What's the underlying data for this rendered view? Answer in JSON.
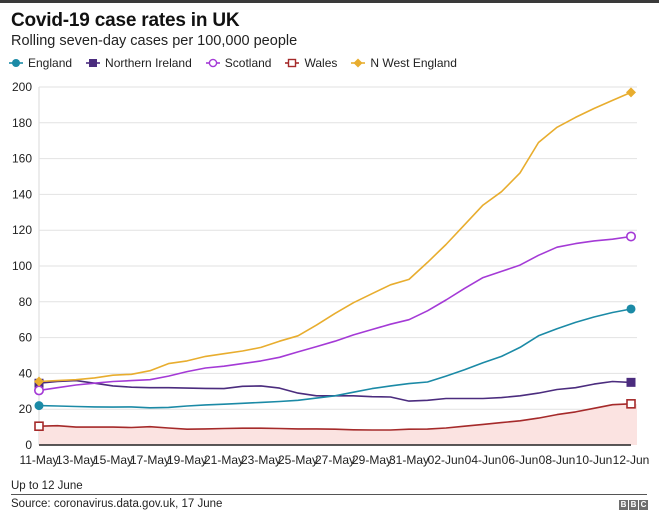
{
  "header": {
    "title": "Covid-19 case rates in UK",
    "subtitle": "Rolling seven-day cases per 100,000 people"
  },
  "footer": {
    "note": "Up to 12 June",
    "source": "Source: coronavirus.data.gov.uk, 17 June",
    "logo_letters": [
      "B",
      "B",
      "C"
    ]
  },
  "chart_data": {
    "type": "line",
    "title": "Covid-19 case rates in UK",
    "subtitle": "Rolling seven-day cases per 100,000 people",
    "xlabel": "",
    "ylabel": "",
    "ylim": [
      0,
      200
    ],
    "yticks": [
      0,
      20,
      40,
      60,
      80,
      100,
      120,
      140,
      160,
      180,
      200
    ],
    "grid": true,
    "legend_position": "top-left",
    "x": [
      "11-May",
      "12-May",
      "13-May",
      "14-May",
      "15-May",
      "16-May",
      "17-May",
      "18-May",
      "19-May",
      "20-May",
      "21-May",
      "22-May",
      "23-May",
      "24-May",
      "25-May",
      "26-May",
      "27-May",
      "28-May",
      "29-May",
      "30-May",
      "31-May",
      "01-Jun",
      "02-Jun",
      "03-Jun",
      "04-Jun",
      "05-Jun",
      "06-Jun",
      "07-Jun",
      "08-Jun",
      "09-Jun",
      "10-Jun",
      "11-Jun",
      "12-Jun"
    ],
    "xtick_labels": [
      "11-May",
      "13-May",
      "15-May",
      "17-May",
      "19-May",
      "21-May",
      "23-May",
      "25-May",
      "27-May",
      "29-May",
      "31-May",
      "02-Jun",
      "04-Jun",
      "06-Jun",
      "08-Jun",
      "10-Jun",
      "12-Jun"
    ],
    "series": [
      {
        "name": "England",
        "color": "#1b8aa6",
        "marker": "filled-circle",
        "values": [
          22,
          21.8,
          21.5,
          21.3,
          21.2,
          21.3,
          20.8,
          21.0,
          21.8,
          22.4,
          22.8,
          23.3,
          23.8,
          24.3,
          25.0,
          26.2,
          27.5,
          29.5,
          31.5,
          33.0,
          34.3,
          35.2,
          38.5,
          42.0,
          46.0,
          49.5,
          54.5,
          61.0,
          65.0,
          68.5,
          71.5,
          74.0,
          76.0
        ]
      },
      {
        "name": "Northern Ireland",
        "color": "#4b2c7e",
        "marker": "filled-square",
        "values": [
          34.5,
          35.5,
          36.0,
          34.5,
          33.0,
          32.3,
          32.0,
          32.0,
          31.8,
          31.6,
          31.5,
          32.8,
          33.0,
          31.8,
          29.0,
          27.5,
          27.5,
          27.5,
          27.0,
          26.8,
          24.5,
          25.0,
          26.0,
          26.0,
          26.0,
          26.5,
          27.5,
          29.0,
          31.0,
          32.0,
          34.0,
          35.5,
          35.0
        ]
      },
      {
        "name": "Scotland",
        "color": "#a43ad6",
        "marker": "open-circle",
        "values": [
          30.5,
          32.0,
          33.5,
          34.5,
          35.5,
          36.0,
          36.5,
          38.5,
          41.0,
          43.0,
          44.0,
          45.5,
          47.0,
          49.0,
          52.0,
          55.0,
          58.0,
          61.5,
          64.5,
          67.5,
          70.0,
          75.0,
          81.0,
          87.5,
          93.5,
          97.0,
          100.5,
          106.0,
          110.5,
          112.5,
          114.0,
          115.0,
          116.5
        ]
      },
      {
        "name": "Wales",
        "color": "#a52a2a",
        "marker": "open-square",
        "values": [
          10.5,
          10.8,
          10.0,
          10.0,
          10.0,
          9.8,
          10.2,
          9.5,
          8.8,
          9.0,
          9.2,
          9.4,
          9.4,
          9.2,
          9.0,
          9.0,
          8.8,
          8.5,
          8.4,
          8.4,
          8.8,
          8.9,
          9.5,
          10.5,
          11.5,
          12.5,
          13.5,
          15.0,
          17.0,
          18.5,
          20.5,
          22.5,
          23.0
        ],
        "area_fill": "#fbe3e1"
      },
      {
        "name": "N West England",
        "color": "#e8ad2e",
        "marker": "filled-diamond",
        "values": [
          35.5,
          36.0,
          36.5,
          37.5,
          39.0,
          39.5,
          41.5,
          45.5,
          47.0,
          49.5,
          51.0,
          52.5,
          54.5,
          58.0,
          61.0,
          67.0,
          73.5,
          79.5,
          84.5,
          89.5,
          92.5,
          102.0,
          112.0,
          123.0,
          134.0,
          141.5,
          152.0,
          169.0,
          177.5,
          183.0,
          188.0,
          192.5,
          197.0
        ]
      }
    ]
  }
}
